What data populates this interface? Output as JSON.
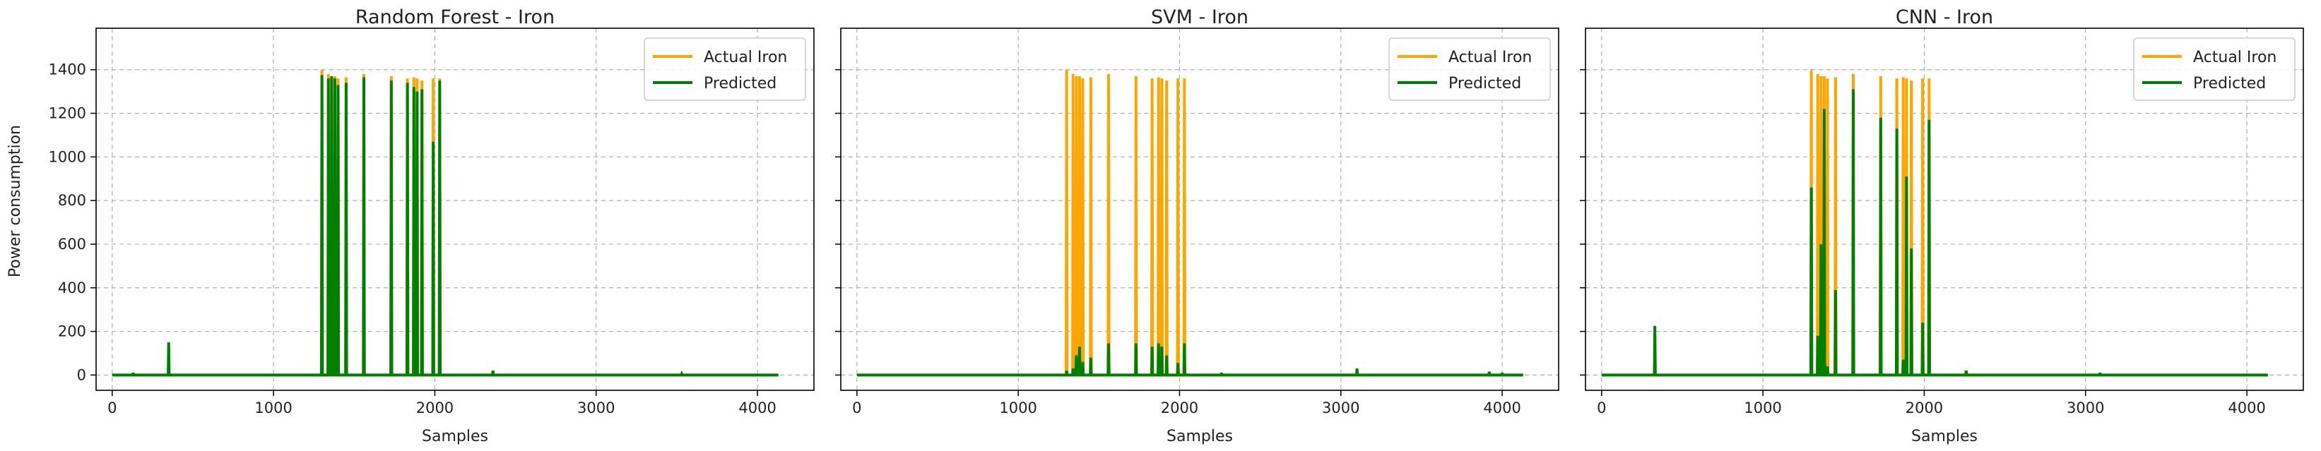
{
  "figure": {
    "ylabel": "Power consumption",
    "xlabel": "Samples",
    "xticks": [
      0,
      1000,
      2000,
      3000,
      4000
    ],
    "yticks": [
      0,
      200,
      400,
      600,
      800,
      1000,
      1200,
      1400
    ],
    "xlim": [
      -100,
      4350
    ],
    "ylim": [
      -70,
      1590
    ],
    "grid": true,
    "legend_position": "top-right",
    "colors": {
      "actual": "#FFA500",
      "predicted": "#008000"
    }
  },
  "chart_data": [
    {
      "type": "line",
      "title": "Random Forest - Iron",
      "xlabel": "Samples",
      "ylabel": "Power consumption",
      "xlim": [
        -100,
        4350
      ],
      "ylim": [
        -70,
        1590
      ],
      "series": [
        {
          "name": "Actual Iron",
          "color": "#FFA500",
          "spikes": [
            [
              1300,
              1400
            ],
            [
              1340,
              1380
            ],
            [
              1360,
              1370
            ],
            [
              1380,
              1370
            ],
            [
              1400,
              1360
            ],
            [
              1450,
              1365
            ],
            [
              1560,
              1380
            ],
            [
              1730,
              1370
            ],
            [
              1830,
              1360
            ],
            [
              1870,
              1365
            ],
            [
              1890,
              1360
            ],
            [
              1920,
              1350
            ],
            [
              1990,
              1360
            ],
            [
              2030,
              1360
            ]
          ]
        },
        {
          "name": "Predicted",
          "color": "#008000",
          "spikes": [
            [
              130,
              10
            ],
            [
              350,
              150
            ],
            [
              1300,
              1375
            ],
            [
              1340,
              1360
            ],
            [
              1360,
              1370
            ],
            [
              1380,
              1360
            ],
            [
              1400,
              1330
            ],
            [
              1450,
              1340
            ],
            [
              1560,
              1365
            ],
            [
              1730,
              1350
            ],
            [
              1830,
              1340
            ],
            [
              1870,
              1320
            ],
            [
              1890,
              1300
            ],
            [
              1920,
              1310
            ],
            [
              1990,
              1070
            ],
            [
              2030,
              1350
            ],
            [
              2360,
              20
            ],
            [
              3530,
              5
            ]
          ]
        }
      ]
    },
    {
      "type": "line",
      "title": "SVM - Iron",
      "xlabel": "Samples",
      "ylabel": "",
      "xlim": [
        -100,
        4350
      ],
      "ylim": [
        -70,
        1590
      ],
      "series": [
        {
          "name": "Actual Iron",
          "color": "#FFA500",
          "spikes": [
            [
              1300,
              1400
            ],
            [
              1340,
              1380
            ],
            [
              1360,
              1370
            ],
            [
              1380,
              1370
            ],
            [
              1400,
              1360
            ],
            [
              1450,
              1365
            ],
            [
              1560,
              1380
            ],
            [
              1730,
              1370
            ],
            [
              1830,
              1360
            ],
            [
              1870,
              1365
            ],
            [
              1890,
              1360
            ],
            [
              1920,
              1350
            ],
            [
              1990,
              1360
            ],
            [
              2030,
              1360
            ]
          ]
        },
        {
          "name": "Predicted",
          "color": "#008000",
          "spikes": [
            [
              1300,
              20
            ],
            [
              1340,
              30
            ],
            [
              1360,
              90
            ],
            [
              1380,
              130
            ],
            [
              1400,
              60
            ],
            [
              1450,
              80
            ],
            [
              1560,
              145
            ],
            [
              1730,
              145
            ],
            [
              1830,
              130
            ],
            [
              1870,
              145
            ],
            [
              1890,
              130
            ],
            [
              1920,
              90
            ],
            [
              1990,
              55
            ],
            [
              2030,
              145
            ],
            [
              2260,
              10
            ],
            [
              3100,
              30
            ],
            [
              3920,
              15
            ],
            [
              4000,
              10
            ]
          ]
        }
      ]
    },
    {
      "type": "line",
      "title": "CNN - Iron",
      "xlabel": "Samples",
      "ylabel": "",
      "xlim": [
        -100,
        4350
      ],
      "ylim": [
        -70,
        1590
      ],
      "series": [
        {
          "name": "Actual Iron",
          "color": "#FFA500",
          "spikes": [
            [
              1300,
              1400
            ],
            [
              1340,
              1380
            ],
            [
              1360,
              1370
            ],
            [
              1380,
              1370
            ],
            [
              1400,
              1360
            ],
            [
              1450,
              1365
            ],
            [
              1560,
              1380
            ],
            [
              1730,
              1370
            ],
            [
              1830,
              1360
            ],
            [
              1870,
              1365
            ],
            [
              1890,
              1360
            ],
            [
              1920,
              1350
            ],
            [
              1990,
              1360
            ],
            [
              2030,
              1360
            ]
          ]
        },
        {
          "name": "Predicted",
          "color": "#008000",
          "spikes": [
            [
              330,
              225
            ],
            [
              1300,
              860
            ],
            [
              1340,
              180
            ],
            [
              1360,
              600
            ],
            [
              1380,
              1220
            ],
            [
              1400,
              40
            ],
            [
              1450,
              390
            ],
            [
              1560,
              1310
            ],
            [
              1730,
              1180
            ],
            [
              1830,
              1130
            ],
            [
              1870,
              70
            ],
            [
              1890,
              910
            ],
            [
              1920,
              580
            ],
            [
              1990,
              240
            ],
            [
              2030,
              1170
            ],
            [
              2260,
              20
            ],
            [
              3090,
              10
            ]
          ]
        }
      ]
    }
  ]
}
